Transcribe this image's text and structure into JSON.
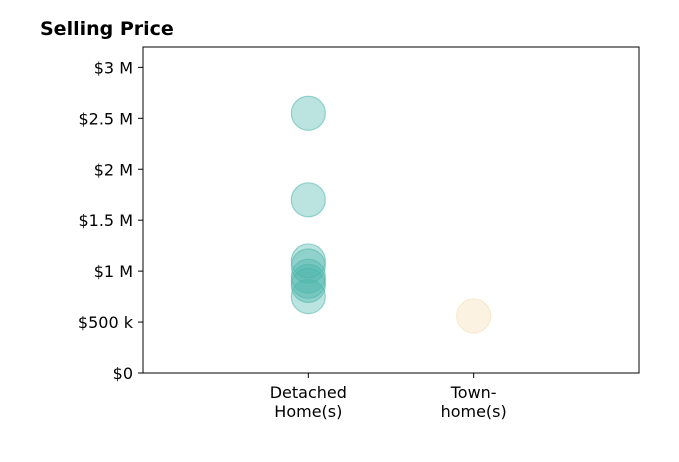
{
  "chart_data": {
    "type": "scatter",
    "title": "Selling Price",
    "xlabel": "",
    "ylabel": "",
    "categories": [
      [
        "Detached",
        "Home(s)"
      ],
      [
        "Town-",
        "home(s)"
      ]
    ],
    "ylim": [
      0,
      3200000
    ],
    "xlim": [
      -1,
      2
    ],
    "yticks": [
      0,
      500000,
      1000000,
      1500000,
      2000000,
      2500000,
      3000000
    ],
    "ytick_labels": [
      "$0",
      "$500 k",
      "$1 M",
      "$1.5 M",
      "$2 M",
      "$2.5 M",
      "$3 M"
    ],
    "grid": false,
    "series": [
      {
        "category": 0,
        "color": "#4db6ac",
        "values": [
          2550000,
          1700000,
          1100000,
          1050000,
          950000,
          900000,
          860000,
          750000
        ]
      },
      {
        "category": 1,
        "color": "#f5deb3",
        "values": [
          560000
        ]
      }
    ]
  }
}
